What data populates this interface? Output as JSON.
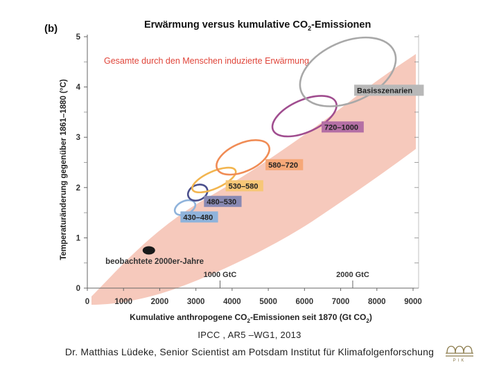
{
  "chart_data": {
    "type": "scatter",
    "panel_label": "(b)",
    "title_main": "Erwärmung versus kumulative CO",
    "title_sub": "2",
    "title_end": "-Emissionen",
    "ylabel": "Temperaturänderung gegenüber 1861–1880 (°C)",
    "xlabel_main": "Kumulative anthropogene CO",
    "xlabel_sub": "2",
    "xlabel_mid": "-Emissionen seit 1870 (Gt CO",
    "xlabel_end_sub": "2",
    "xlabel_close": ")",
    "xlim": [
      0,
      9000
    ],
    "ylim": [
      0,
      5
    ],
    "x_ticks": [
      "0",
      "1000",
      "2000",
      "3000",
      "4000",
      "5000",
      "6000",
      "7000",
      "8000",
      "9000"
    ],
    "y_ticks": [
      "0",
      "1",
      "2",
      "3",
      "4",
      "5"
    ],
    "top_axis_labels": [
      {
        "label": "1000 GtC",
        "x": 3667
      },
      {
        "label": "2000 GtC",
        "x": 7333
      }
    ],
    "band_label": "Gesamte durch den Menschen induzierte Erwärmung",
    "band_color": "#f4c0b0",
    "observed": {
      "label": "beobachtete 2000er-Jahre",
      "x": 1700,
      "y": 0.75,
      "color": "#1a1a1a"
    },
    "scenarios": [
      {
        "name": "430–480",
        "cx": 2700,
        "cy": 1.6,
        "rx": 300,
        "ry": 0.13,
        "color": "#8fb3db",
        "label_bg": "#8fb3db",
        "label_x": 2650,
        "label_y": 1.36
      },
      {
        "name": "480–530",
        "cx": 3050,
        "cy": 1.9,
        "rx": 280,
        "ry": 0.15,
        "color": "#4a4f8c",
        "label_bg": "#8889b3",
        "label_x": 3300,
        "label_y": 1.67
      },
      {
        "name": "530–580",
        "cx": 3500,
        "cy": 2.15,
        "rx": 650,
        "ry": 0.17,
        "color": "#f2b54f",
        "label_bg": "#f7c777",
        "label_x": 3900,
        "label_y": 1.98
      },
      {
        "name": "580–720",
        "cx": 4300,
        "cy": 2.6,
        "rx": 780,
        "ry": 0.28,
        "color": "#f08c55",
        "label_bg": "#f6a878",
        "label_x": 5000,
        "label_y": 2.4
      },
      {
        "name": "720–1000",
        "cx": 6000,
        "cy": 3.42,
        "rx": 950,
        "ry": 0.32,
        "color": "#a04d8f",
        "label_bg": "#b46fa5",
        "label_x": 6550,
        "label_y": 3.15
      },
      {
        "name": "Basisszenarien",
        "cx": 7200,
        "cy": 4.3,
        "rx": 1400,
        "ry": 0.6,
        "color": "#a8a8a8",
        "label_bg": "#b8b8b8",
        "label_x": 7450,
        "label_y": 3.88
      }
    ]
  },
  "captions": {
    "source": "IPCC , AR5 –WG1, 2013",
    "author": "Dr. Matthias Lüdeke, Senior Scientist am Potsdam Institut für Klimafolgenforschung"
  },
  "logo": {
    "text": "PIK",
    "color": "#8a7a4a"
  }
}
